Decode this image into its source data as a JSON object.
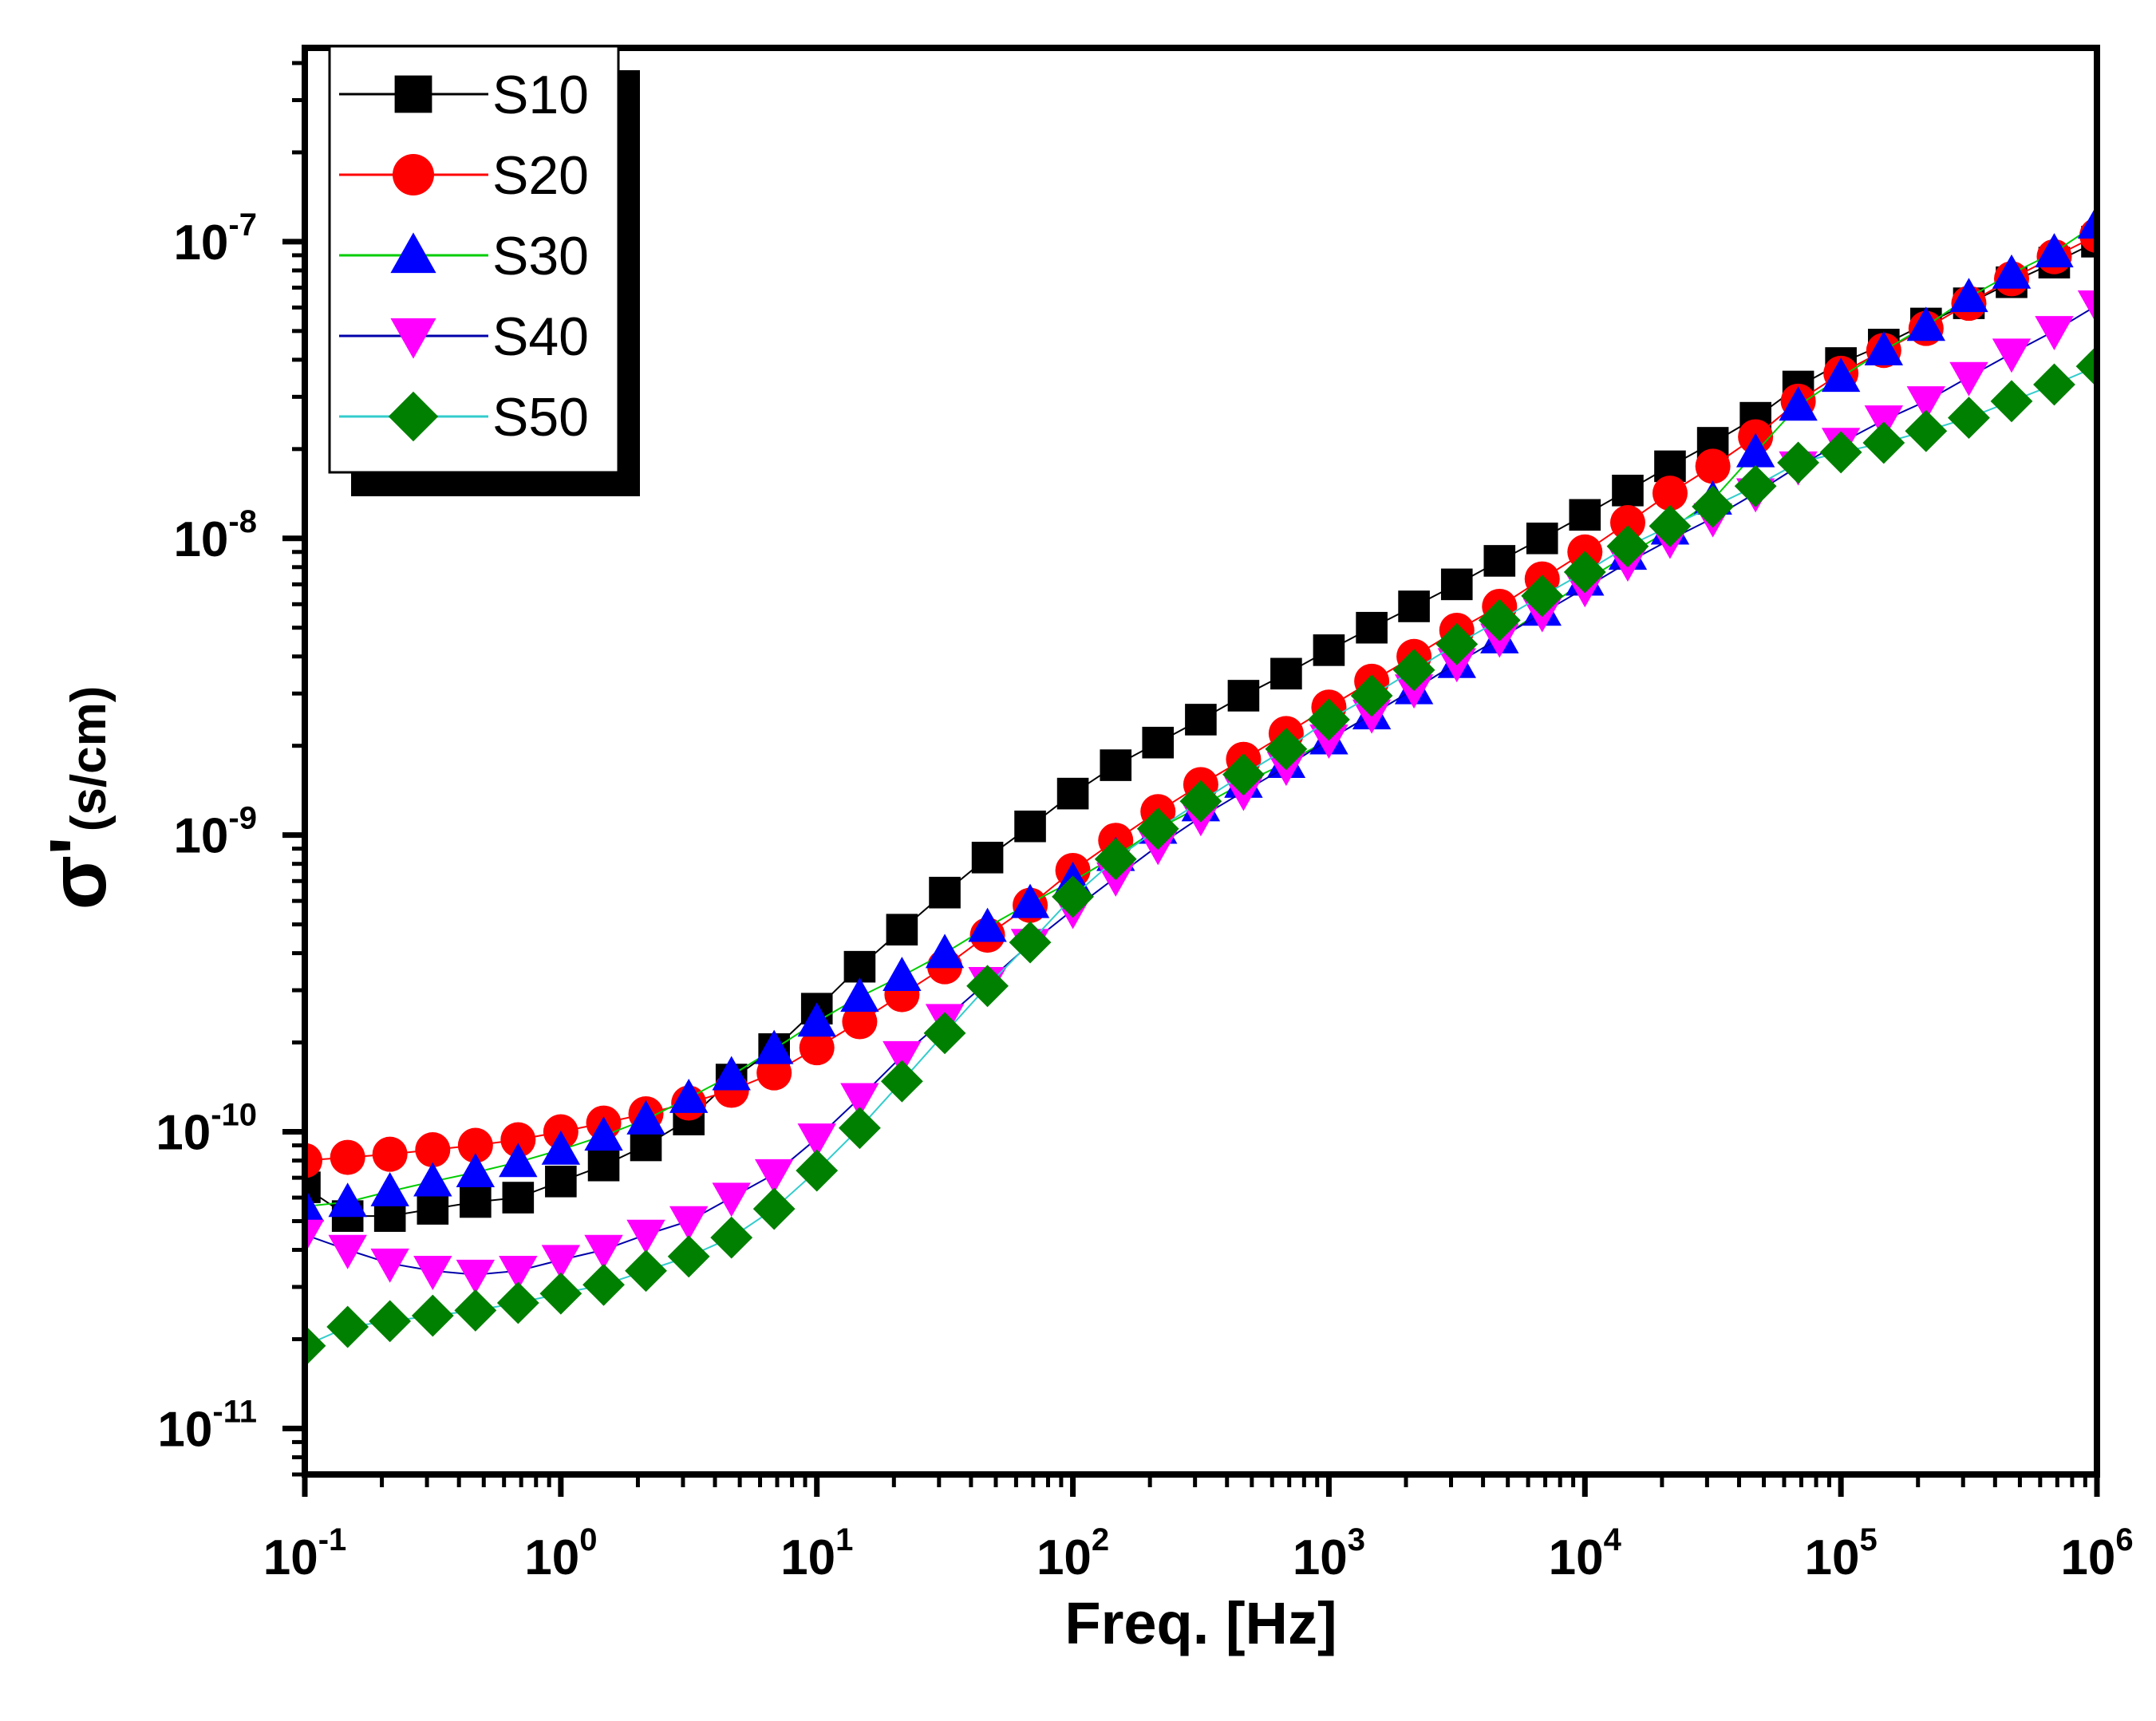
{
  "chart_data": {
    "type": "scatter",
    "title": "",
    "xlabel": "Freq. [Hz]",
    "ylabel": {
      "main": "σ'",
      "units": "(s/cm)"
    },
    "xscale": "log",
    "yscale": "log",
    "xlim": [
      0.1,
      1000000
    ],
    "ylim": [
      7e-12,
      4.5e-07
    ],
    "x_ticks": [
      {
        "base": "10",
        "exp": "-1",
        "value": 0.1
      },
      {
        "base": "10",
        "exp": "0",
        "value": 1
      },
      {
        "base": "10",
        "exp": "1",
        "value": 10
      },
      {
        "base": "10",
        "exp": "2",
        "value": 100
      },
      {
        "base": "10",
        "exp": "3",
        "value": 1000
      },
      {
        "base": "10",
        "exp": "4",
        "value": 10000
      },
      {
        "base": "10",
        "exp": "5",
        "value": 100000
      },
      {
        "base": "10",
        "exp": "6",
        "value": 1000000
      }
    ],
    "y_ticks": [
      {
        "base": "10",
        "exp": "-11",
        "value": 1e-11
      },
      {
        "base": "10",
        "exp": "-10",
        "value": 1e-10
      },
      {
        "base": "10",
        "exp": "-9",
        "value": 1e-09
      },
      {
        "base": "10",
        "exp": "-8",
        "value": 1e-08
      },
      {
        "base": "10",
        "exp": "-7",
        "value": 1e-07
      }
    ],
    "legend_position": "top-left",
    "x": [
      0.1,
      0.147,
      0.215,
      0.316,
      0.464,
      0.681,
      1.0,
      1.47,
      2.15,
      3.16,
      4.64,
      6.81,
      10,
      14.7,
      21.5,
      31.6,
      46.4,
      68.1,
      100,
      147,
      215,
      316,
      464,
      681,
      1000,
      1470,
      2150,
      3160,
      4640,
      6810,
      10000,
      14700,
      21500,
      31600,
      46400,
      68100,
      100000,
      147000,
      215000,
      316000,
      464000,
      681000,
      1000000
    ],
    "series": [
      {
        "name": "S10",
        "marker": "square",
        "color": "#000000",
        "line_color": "#000000",
        "values": [
          6.5e-11,
          5.2e-11,
          5.2e-11,
          5.5e-11,
          5.8e-11,
          6e-11,
          6.8e-11,
          7.7e-11,
          9e-11,
          1.1e-10,
          1.5e-10,
          1.9e-10,
          2.6e-10,
          3.6e-10,
          4.8e-10,
          6.4e-10,
          8.4e-10,
          1.07e-09,
          1.38e-09,
          1.72e-09,
          2.05e-09,
          2.45e-09,
          2.95e-09,
          3.5e-09,
          4.2e-09,
          5e-09,
          5.9e-09,
          7e-09,
          8.4e-09,
          1e-08,
          1.2e-08,
          1.45e-08,
          1.75e-08,
          2.1e-08,
          2.55e-08,
          3.25e-08,
          3.9e-08,
          4.5e-08,
          5.3e-08,
          6.2e-08,
          7.3e-08,
          8.5e-08,
          1e-07
        ]
      },
      {
        "name": "S20",
        "marker": "circle",
        "color": "#ff0000",
        "line_color": "#ff0000",
        "values": [
          8e-11,
          8.2e-11,
          8.4e-11,
          8.7e-11,
          9e-11,
          9.4e-11,
          1e-10,
          1.07e-10,
          1.15e-10,
          1.25e-10,
          1.38e-10,
          1.58e-10,
          1.92e-10,
          2.35e-10,
          2.9e-10,
          3.6e-10,
          4.6e-10,
          5.8e-10,
          7.6e-10,
          9.6e-10,
          1.2e-09,
          1.48e-09,
          1.8e-09,
          2.2e-09,
          2.7e-09,
          3.3e-09,
          4e-09,
          4.9e-09,
          5.9e-09,
          7.3e-09,
          9e-09,
          1.13e-08,
          1.42e-08,
          1.75e-08,
          2.2e-08,
          2.9e-08,
          3.6e-08,
          4.3e-08,
          5.1e-08,
          6.2e-08,
          7.5e-08,
          8.9e-08,
          1.05e-07
        ]
      },
      {
        "name": "S30",
        "marker": "triangle-up",
        "color": "#0000ff",
        "line_color": "#00cc00",
        "values": [
          5.6e-11,
          5.8e-11,
          6.3e-11,
          6.8e-11,
          7.3e-11,
          7.9e-11,
          8.7e-11,
          9.7e-11,
          1.1e-10,
          1.3e-10,
          1.55e-10,
          1.9e-10,
          2.35e-10,
          2.85e-10,
          3.35e-10,
          4e-10,
          4.9e-10,
          5.9e-10,
          7e-10,
          8.5e-10,
          1.05e-09,
          1.25e-09,
          1.5e-09,
          1.75e-09,
          2.1e-09,
          2.55e-09,
          3.1e-09,
          3.8e-09,
          4.6e-09,
          5.7e-09,
          7.2e-09,
          8.8e-09,
          1.07e-08,
          1.35e-08,
          1.95e-08,
          2.8e-08,
          3.5e-08,
          4.3e-08,
          5.2e-08,
          6.5e-08,
          7.8e-08,
          9.2e-08,
          1.15e-07
        ]
      },
      {
        "name": "S40",
        "marker": "triangle-down",
        "color": "#ff00ff",
        "line_color": "#0000aa",
        "values": [
          4.5e-11,
          4e-11,
          3.6e-11,
          3.4e-11,
          3.3e-11,
          3.4e-11,
          3.7e-11,
          4e-11,
          4.5e-11,
          5e-11,
          6e-11,
          7.2e-11,
          9.5e-11,
          1.3e-10,
          1.8e-10,
          2.4e-10,
          3.2e-10,
          4.3e-10,
          5.6e-10,
          7.2e-10,
          9.2e-10,
          1.15e-09,
          1.4e-09,
          1.7e-09,
          2.1e-09,
          2.55e-09,
          3.1e-09,
          3.8e-09,
          4.6e-09,
          5.6e-09,
          6.8e-09,
          8.3e-09,
          9.9e-09,
          1.17e-08,
          1.42e-08,
          1.75e-08,
          2.1e-08,
          2.5e-08,
          2.9e-08,
          3.5e-08,
          4.2e-08,
          5e-08,
          6.1e-08
        ]
      },
      {
        "name": "S50",
        "marker": "diamond",
        "color": "#008000",
        "line_color": "#33cccc",
        "values": [
          1.9e-11,
          2.2e-11,
          2.3e-11,
          2.4e-11,
          2.5e-11,
          2.65e-11,
          2.85e-11,
          3.05e-11,
          3.4e-11,
          3.8e-11,
          4.4e-11,
          5.5e-11,
          7.4e-11,
          1.03e-10,
          1.48e-10,
          2.15e-10,
          3.1e-10,
          4.35e-10,
          6.2e-10,
          8.3e-10,
          1.05e-09,
          1.3e-09,
          1.6e-09,
          1.95e-09,
          2.45e-09,
          2.95e-09,
          3.6e-09,
          4.4e-09,
          5.3e-09,
          6.4e-09,
          7.7e-09,
          9.4e-09,
          1.1e-08,
          1.28e-08,
          1.5e-08,
          1.8e-08,
          1.95e-08,
          2.1e-08,
          2.3e-08,
          2.55e-08,
          2.9e-08,
          3.3e-08,
          3.8e-08
        ]
      }
    ]
  }
}
